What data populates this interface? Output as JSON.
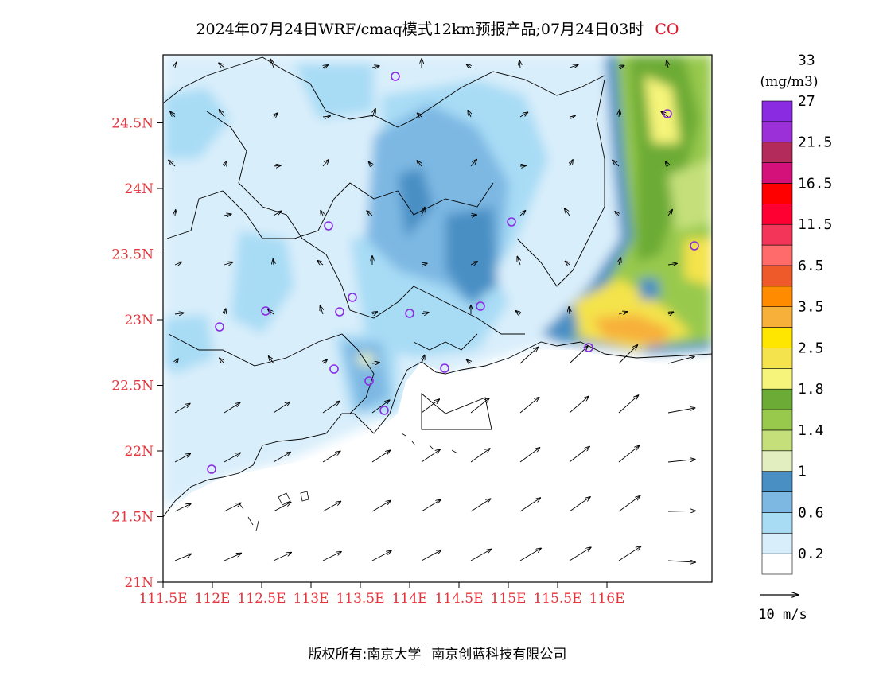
{
  "title": {
    "main": "2024年07月24日WRF/cmaq模式12km预报产品;07月24日03时",
    "species": "CO"
  },
  "axes": {
    "lat_ticks": [
      "21N",
      "21.5N",
      "22N",
      "22.5N",
      "23N",
      "23.5N",
      "24N",
      "24.5N"
    ],
    "lon_ticks": [
      "111.5E",
      "112E",
      "112.5E",
      "113E",
      "113.5E",
      "114E",
      "114.5E",
      "115E",
      "115.5E",
      "116E"
    ]
  },
  "legend": {
    "unit": "(mg/m3)",
    "levels": [
      "0.2",
      "0.6",
      "1",
      "1.4",
      "1.8",
      "2.5",
      "3.5",
      "6.5",
      "11.5",
      "16.5",
      "21.5",
      "27",
      "33"
    ],
    "colors": [
      "#ffffff",
      "#d9eefb",
      "#a8dcf5",
      "#7db8e3",
      "#4a8fc4",
      "#e2eec0",
      "#c5e07a",
      "#98c94d",
      "#6cab35",
      "#f6f47a",
      "#f4e34c",
      "#ffe600",
      "#f7b03a",
      "#ff8c00",
      "#ee5a2a",
      "#ff6b6b",
      "#f4355a",
      "#ff0033",
      "#ff0000",
      "#d4117a",
      "#b22b5a",
      "#9b30d9",
      "#8a2be2"
    ]
  },
  "vector_key": {
    "label": "10 m/s"
  },
  "stations_color": "#8a2be2",
  "footer": {
    "left": "版权所有:南京大学",
    "right": "南京创蓝科技有限公司"
  }
}
